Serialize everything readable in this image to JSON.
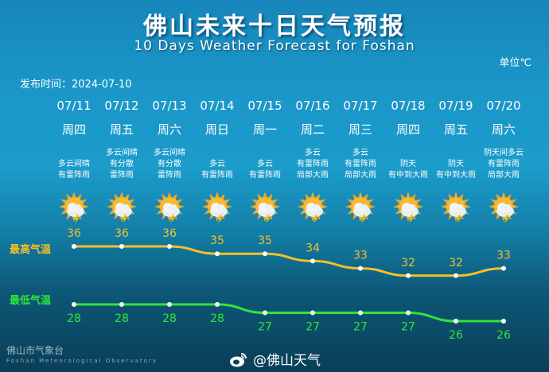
{
  "title": "佛山未来十日天气预报",
  "subtitle": "10 Days Weather Forecast for Foshan",
  "unit": "单位℃",
  "publish": "发布时间：2024-07-10",
  "colors": {
    "high": "#f2c02a",
    "low": "#2fe63a"
  },
  "days": [
    {
      "date": "07/11",
      "weekday": "周四",
      "desc": [
        "多云间晴",
        "有雷阵雨"
      ],
      "icon": "sun-cloud-thunder-icon"
    },
    {
      "date": "07/12",
      "weekday": "周五",
      "desc": [
        "多云间晴",
        "有分散",
        "雷阵雨"
      ],
      "icon": "sun-cloud-thunder-icon"
    },
    {
      "date": "07/13",
      "weekday": "周六",
      "desc": [
        "多云间晴",
        "有分散",
        "雷阵雨"
      ],
      "icon": "sun-cloud-thunder-icon"
    },
    {
      "date": "07/14",
      "weekday": "周日",
      "desc": [
        "多云",
        "有雷阵雨"
      ],
      "icon": "sun-cloud-thunder-icon"
    },
    {
      "date": "07/15",
      "weekday": "周一",
      "desc": [
        "多云",
        "有雷阵雨"
      ],
      "icon": "sun-cloud-thunder-icon"
    },
    {
      "date": "07/16",
      "weekday": "周二",
      "desc": [
        "多云",
        "有雷阵雨",
        "局部大雨"
      ],
      "icon": "sun-cloud-thunder-icon"
    },
    {
      "date": "07/17",
      "weekday": "周三",
      "desc": [
        "多云",
        "有雷阵雨",
        "局部大雨"
      ],
      "icon": "sun-cloud-thunder-icon"
    },
    {
      "date": "07/18",
      "weekday": "周四",
      "desc": [
        "阴天",
        "有中到大雨"
      ],
      "icon": "cloud-rain-icon"
    },
    {
      "date": "07/19",
      "weekday": "周五",
      "desc": [
        "阴天",
        "有中到大雨"
      ],
      "icon": "cloud-rain-icon"
    },
    {
      "date": "07/20",
      "weekday": "周六",
      "desc": [
        "阴天间多云",
        "有雷阵雨",
        "局部大雨"
      ],
      "icon": "sun-cloud-thunder-icon"
    }
  ],
  "chart_data": {
    "type": "line",
    "categories": [
      "07/11",
      "07/12",
      "07/13",
      "07/14",
      "07/15",
      "07/16",
      "07/17",
      "07/18",
      "07/19",
      "07/20"
    ],
    "series": [
      {
        "name": "最高气温",
        "values": [
          36,
          36,
          36,
          35,
          35,
          34,
          33,
          32,
          32,
          33
        ]
      },
      {
        "name": "最低气温",
        "values": [
          28,
          28,
          28,
          28,
          27,
          27,
          27,
          27,
          26,
          26
        ]
      }
    ],
    "ylabel": "单位℃"
  },
  "footer": {
    "org_cn": "佛山市气象台",
    "org_en": "Foshan Meteorological Observatory",
    "weibo": "@佛山天气"
  }
}
